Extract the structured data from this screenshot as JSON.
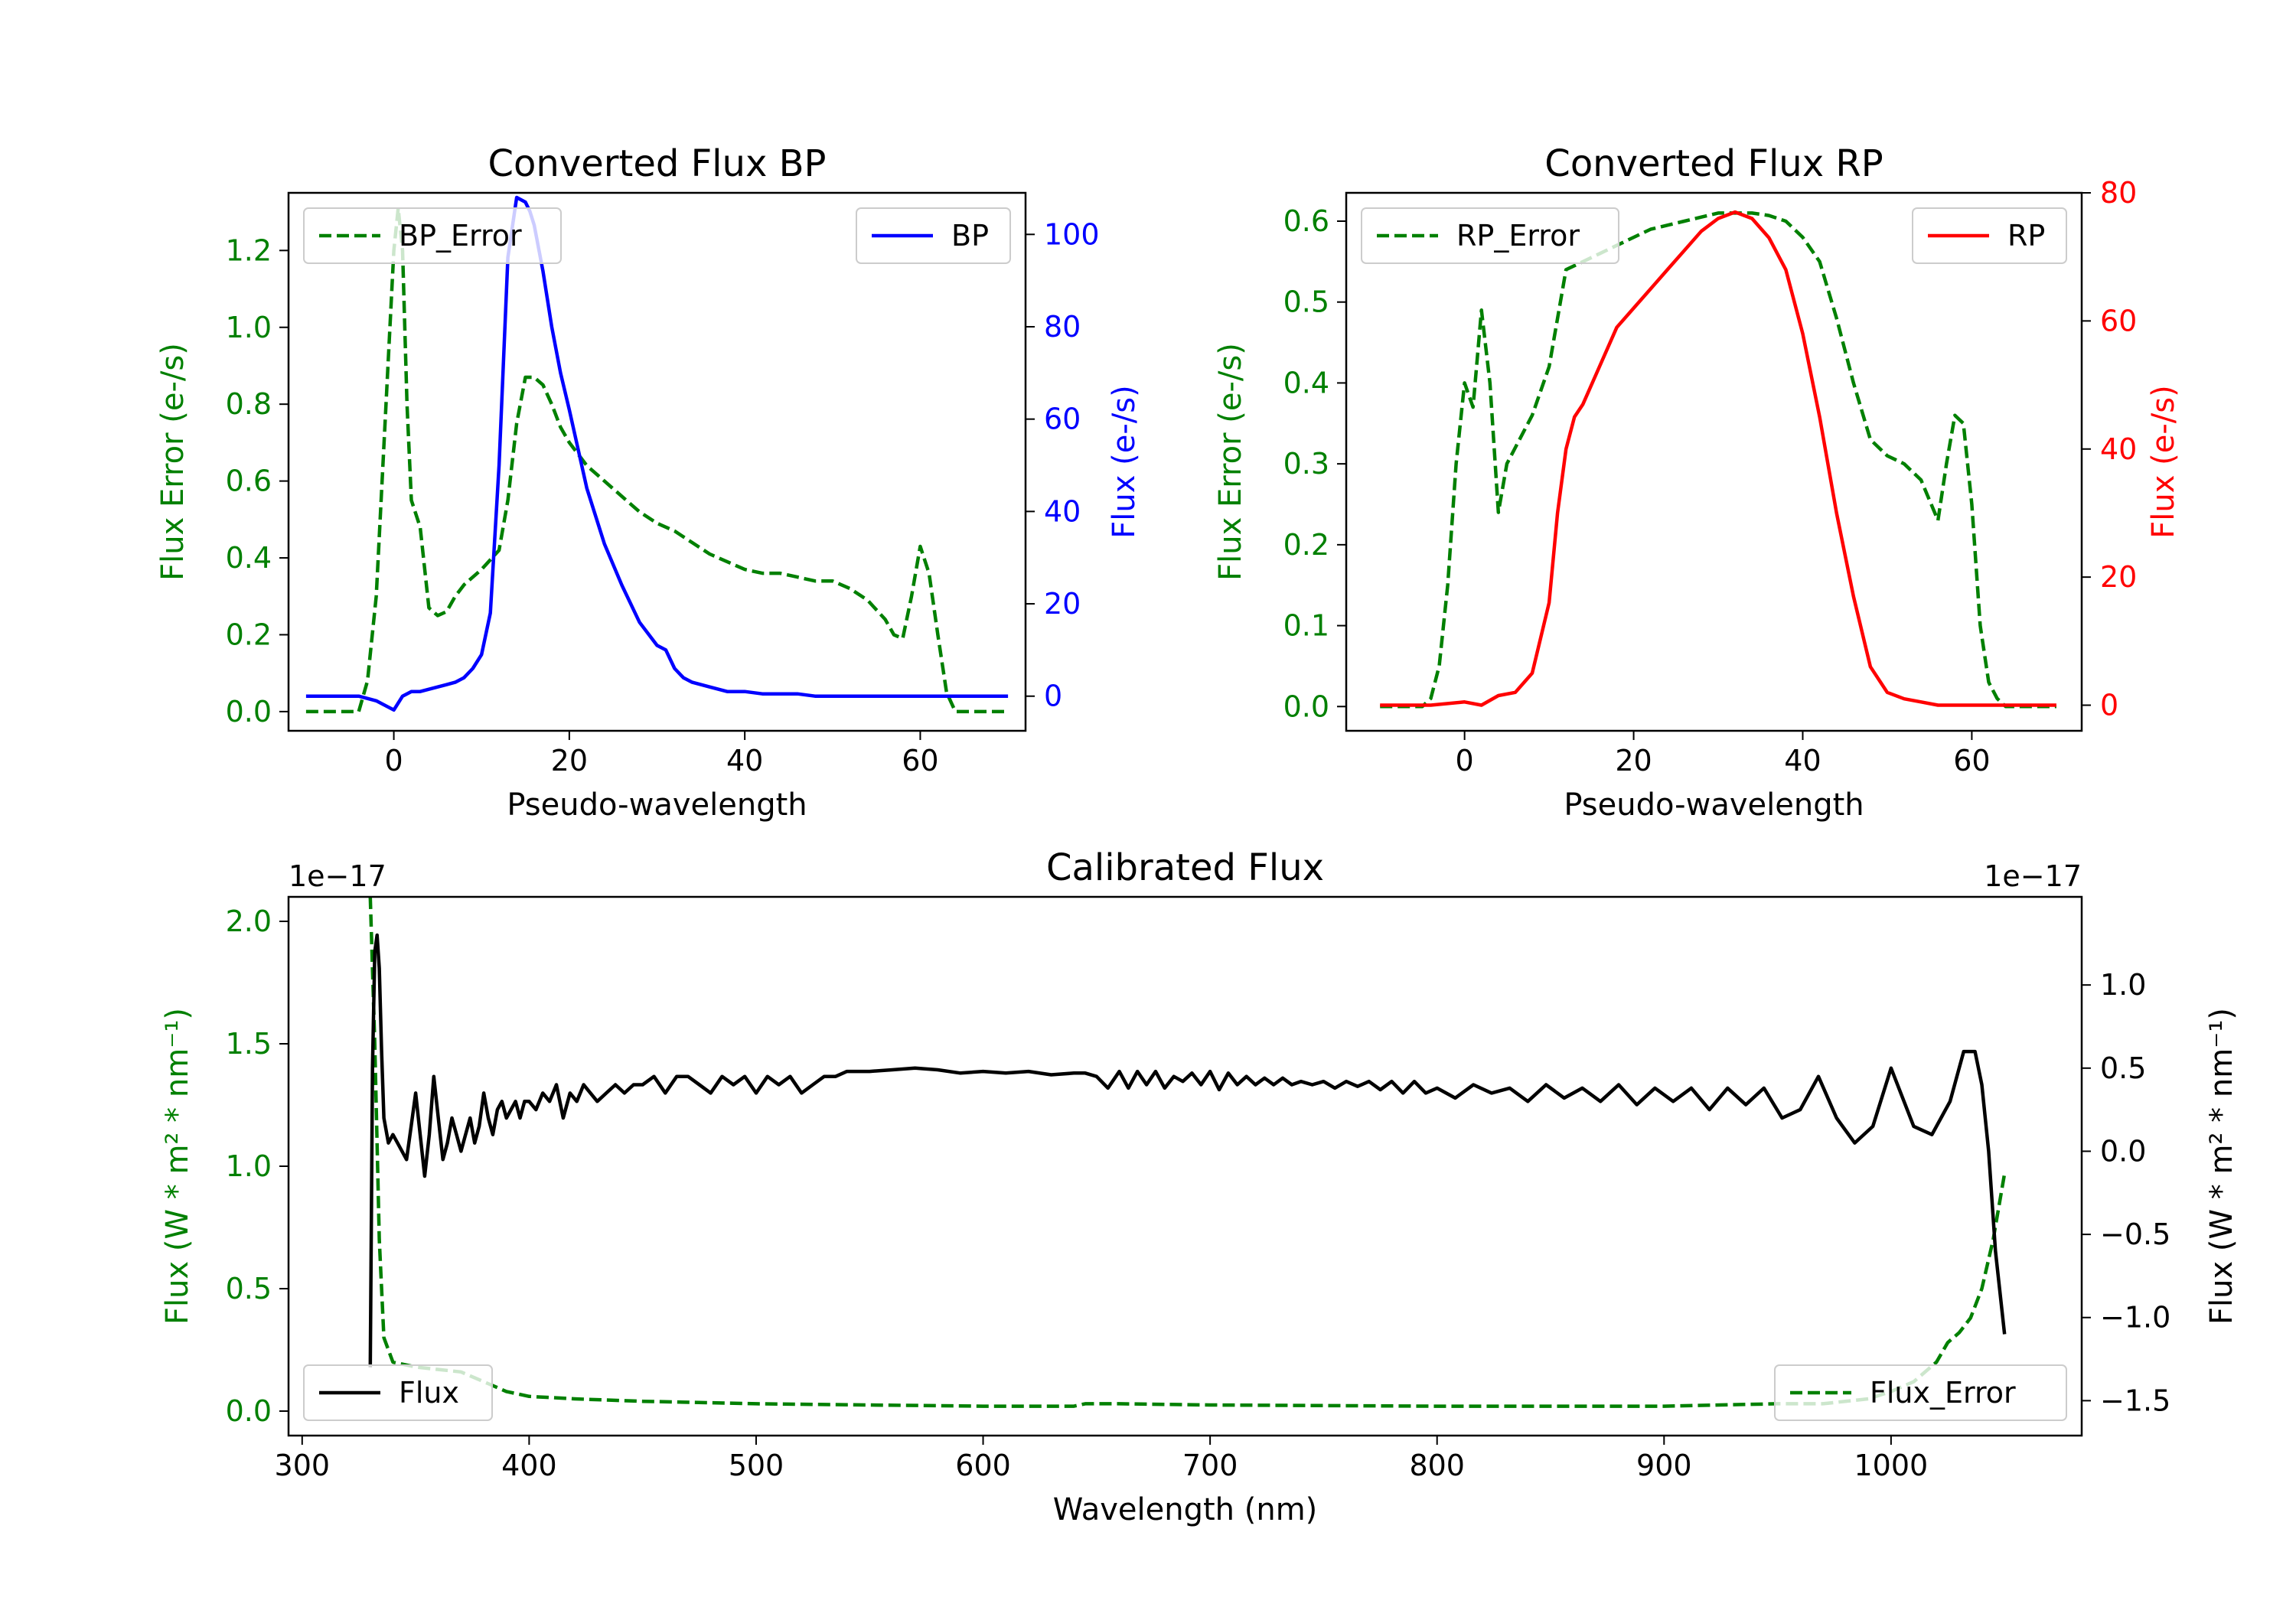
{
  "chart_data": [
    {
      "id": "bp",
      "type": "line",
      "title": "Converted Flux BP",
      "xlabel": "Pseudo-wavelength",
      "ylabel_left": "Flux Error (e-/s)",
      "ylabel_right": "Flux (e-/s)",
      "xlim": [
        -12,
        72
      ],
      "ylim_left": [
        -0.05,
        1.35
      ],
      "ylim_right": [
        -7.5,
        109
      ],
      "xticks": [
        0,
        20,
        40,
        60
      ],
      "yticks_left": [
        0.0,
        0.2,
        0.4,
        0.6,
        0.8,
        1.0,
        1.2
      ],
      "yticks_right": [
        0,
        20,
        40,
        60,
        80,
        100
      ],
      "colors": {
        "error": "#008000",
        "flux": "#0000ff",
        "left_axis": "#008000",
        "right_axis": "#0000ff"
      },
      "series": [
        {
          "name": "BP_Error",
          "axis": "left",
          "style": "dashed",
          "color": "#008000",
          "x": [
            -10,
            -4,
            -3,
            -2,
            -1,
            0,
            0.5,
            1,
            1.5,
            2,
            3,
            4,
            5,
            6,
            7,
            8,
            10,
            12,
            13,
            14,
            15,
            16,
            17,
            18,
            19,
            20,
            22,
            24,
            26,
            28,
            30,
            32,
            34,
            36,
            38,
            40,
            42,
            44,
            46,
            48,
            50,
            52,
            54,
            56,
            57,
            58,
            59,
            60,
            61,
            62,
            63,
            64,
            66,
            68,
            70
          ],
          "y": [
            0,
            0,
            0.08,
            0.3,
            0.75,
            1.2,
            1.31,
            1.2,
            0.8,
            0.55,
            0.48,
            0.27,
            0.25,
            0.26,
            0.3,
            0.33,
            0.37,
            0.42,
            0.55,
            0.75,
            0.87,
            0.87,
            0.85,
            0.8,
            0.74,
            0.7,
            0.64,
            0.6,
            0.56,
            0.52,
            0.49,
            0.47,
            0.44,
            0.41,
            0.39,
            0.37,
            0.36,
            0.36,
            0.35,
            0.34,
            0.34,
            0.32,
            0.29,
            0.24,
            0.2,
            0.19,
            0.3,
            0.43,
            0.36,
            0.2,
            0.05,
            0,
            0,
            0,
            0
          ]
        },
        {
          "name": "BP",
          "axis": "right",
          "style": "solid",
          "color": "#0000ff",
          "x": [
            -10,
            -6,
            -4,
            -2,
            0,
            1,
            2,
            3,
            4,
            5,
            6,
            7,
            8,
            9,
            10,
            11,
            12,
            13,
            14,
            15,
            15.5,
            16,
            17,
            18,
            19,
            20,
            22,
            24,
            26,
            28,
            30,
            31,
            32,
            33,
            34,
            36,
            38,
            40,
            42,
            44,
            46,
            48,
            50,
            52,
            54,
            56,
            58,
            60,
            62,
            64,
            66,
            68,
            70
          ],
          "y": [
            0,
            0,
            0,
            -1,
            -3,
            0,
            1,
            1,
            1.5,
            2,
            2.5,
            3,
            4,
            6,
            9,
            18,
            50,
            95,
            108,
            107,
            105,
            102,
            92,
            80,
            70,
            62,
            45,
            33,
            24,
            16,
            11,
            10,
            6,
            4,
            3,
            2,
            1,
            1,
            0.5,
            0.5,
            0.5,
            0,
            0,
            0,
            0,
            0,
            0,
            0,
            0,
            0,
            0,
            0,
            0
          ]
        }
      ],
      "legend": [
        "BP_Error",
        "BP"
      ],
      "legend_loc": [
        "upper left",
        "upper right"
      ]
    },
    {
      "id": "rp",
      "type": "line",
      "title": "Converted Flux RP",
      "xlabel": "Pseudo-wavelength",
      "ylabel_left": "Flux Error (e-/s)",
      "ylabel_right": "Flux (e-/s)",
      "xlim": [
        -14,
        73
      ],
      "ylim_left": [
        -0.03,
        0.635
      ],
      "ylim_right": [
        -4,
        80
      ],
      "xticks": [
        0,
        20,
        40,
        60
      ],
      "yticks_left": [
        0.0,
        0.1,
        0.2,
        0.3,
        0.4,
        0.5,
        0.6
      ],
      "yticks_right": [
        0,
        20,
        40,
        60,
        80
      ],
      "colors": {
        "error": "#008000",
        "flux": "#ff0000",
        "left_axis": "#008000",
        "right_axis": "#ff0000"
      },
      "series": [
        {
          "name": "RP_Error",
          "axis": "left",
          "style": "dashed",
          "color": "#008000",
          "x": [
            -10,
            -5,
            -4,
            -3,
            -2,
            -1,
            0,
            1,
            2,
            3,
            4,
            5,
            6,
            8,
            10,
            12,
            14,
            16,
            18,
            20,
            22,
            24,
            26,
            28,
            30,
            32,
            34,
            36,
            38,
            40,
            42,
            44,
            46,
            48,
            50,
            52,
            54,
            56,
            57,
            58,
            59,
            60,
            61,
            62,
            63,
            64,
            66,
            68,
            70
          ],
          "y": [
            0,
            0,
            0.01,
            0.05,
            0.15,
            0.3,
            0.4,
            0.37,
            0.49,
            0.4,
            0.24,
            0.3,
            0.32,
            0.36,
            0.42,
            0.54,
            0.55,
            0.56,
            0.57,
            0.58,
            0.59,
            0.595,
            0.6,
            0.605,
            0.61,
            0.61,
            0.61,
            0.607,
            0.6,
            0.58,
            0.55,
            0.48,
            0.4,
            0.33,
            0.31,
            0.3,
            0.28,
            0.23,
            0.3,
            0.36,
            0.35,
            0.25,
            0.1,
            0.03,
            0.01,
            0,
            0,
            0,
            0
          ]
        },
        {
          "name": "RP",
          "axis": "right",
          "style": "solid",
          "color": "#ff0000",
          "x": [
            -10,
            -4,
            0,
            2,
            4,
            6,
            8,
            10,
            11,
            12,
            13,
            14,
            16,
            18,
            20,
            22,
            24,
            26,
            28,
            30,
            32,
            34,
            36,
            38,
            40,
            42,
            44,
            46,
            48,
            50,
            52,
            54,
            56,
            58,
            60,
            62,
            64,
            66,
            68,
            70
          ],
          "y": [
            0,
            0,
            0.5,
            0,
            1.5,
            2,
            5,
            16,
            30,
            40,
            45,
            47,
            53,
            59,
            62,
            65,
            68,
            71,
            74,
            76,
            77,
            76,
            73,
            68,
            58,
            45,
            30,
            17,
            6,
            2,
            1,
            0.5,
            0,
            0,
            0,
            0,
            0,
            0,
            0,
            0
          ]
        }
      ],
      "legend": [
        "RP_Error",
        "RP"
      ],
      "legend_loc": [
        "upper left",
        "upper right"
      ]
    },
    {
      "id": "cal",
      "type": "line",
      "title": "Calibrated Flux",
      "xlabel": "Wavelength (nm)",
      "ylabel_left": "Flux (W * m² * nm⁻¹)",
      "ylabel_right": "Flux (W * m² * nm⁻¹)",
      "offset_left": "1e−17",
      "offset_right": "1e−17",
      "xlim": [
        294,
        1084
      ],
      "ylim_left": [
        -0.1,
        2.1
      ],
      "ylim_right": [
        -1.71,
        1.53
      ],
      "xticks": [
        300,
        400,
        500,
        600,
        700,
        800,
        900,
        1000
      ],
      "yticks_left": [
        0.0,
        0.5,
        1.0,
        1.5,
        2.0
      ],
      "yticks_right": [
        -1.5,
        -1.0,
        -0.5,
        0.0,
        0.5,
        1.0
      ],
      "colors": {
        "error": "#008000",
        "flux": "#000000",
        "left_axis": "#008000",
        "right_axis": "#000000"
      },
      "series": [
        {
          "name": "Flux_Error",
          "axis": "left",
          "style": "dashed",
          "color": "#008000",
          "x": [
            330,
            332,
            334,
            336,
            340,
            345,
            350,
            360,
            370,
            380,
            390,
            400,
            420,
            450,
            500,
            550,
            600,
            640,
            645,
            660,
            700,
            800,
            900,
            950,
            970,
            990,
            1000,
            1010,
            1020,
            1025,
            1030,
            1035,
            1040,
            1045,
            1050
          ],
          "y": [
            2.1,
            1.5,
            0.7,
            0.3,
            0.2,
            0.19,
            0.18,
            0.17,
            0.16,
            0.12,
            0.08,
            0.06,
            0.05,
            0.04,
            0.03,
            0.025,
            0.02,
            0.02,
            0.03,
            0.03,
            0.025,
            0.02,
            0.02,
            0.03,
            0.03,
            0.05,
            0.08,
            0.12,
            0.2,
            0.28,
            0.32,
            0.38,
            0.5,
            0.7,
            0.97
          ]
        },
        {
          "name": "Flux",
          "axis": "right",
          "style": "solid",
          "color": "#000000",
          "x": [
            330,
            331,
            332,
            333,
            334,
            335,
            336,
            338,
            340,
            342,
            344,
            346,
            348,
            350,
            352,
            354,
            356,
            358,
            360,
            362,
            364,
            366,
            368,
            370,
            372,
            374,
            376,
            378,
            380,
            382,
            384,
            386,
            388,
            390,
            392,
            394,
            396,
            398,
            400,
            403,
            406,
            409,
            412,
            415,
            418,
            421,
            424,
            427,
            430,
            434,
            438,
            442,
            446,
            450,
            455,
            460,
            465,
            470,
            475,
            480,
            485,
            490,
            495,
            500,
            505,
            510,
            515,
            520,
            525,
            530,
            535,
            540,
            550,
            560,
            570,
            580,
            590,
            600,
            610,
            620,
            630,
            640,
            645,
            650,
            655,
            660,
            664,
            668,
            672,
            676,
            680,
            684,
            688,
            692,
            696,
            700,
            704,
            708,
            712,
            716,
            720,
            724,
            728,
            732,
            736,
            740,
            745,
            750,
            755,
            760,
            765,
            770,
            775,
            780,
            785,
            790,
            795,
            800,
            808,
            816,
            824,
            832,
            840,
            848,
            856,
            864,
            872,
            880,
            888,
            896,
            904,
            912,
            920,
            928,
            936,
            944,
            952,
            960,
            968,
            976,
            984,
            992,
            1000,
            1010,
            1018,
            1026,
            1032,
            1037,
            1040,
            1043,
            1046,
            1050
          ],
          "y": [
            -1.3,
            0.5,
            1.2,
            1.3,
            1.1,
            0.6,
            0.2,
            0.05,
            0.1,
            0.05,
            0,
            -0.05,
            0.15,
            0.35,
            0.1,
            -0.15,
            0.1,
            0.45,
            0.2,
            -0.05,
            0.05,
            0.2,
            0.1,
            0.0,
            0.1,
            0.2,
            0.05,
            0.15,
            0.35,
            0.2,
            0.1,
            0.25,
            0.3,
            0.2,
            0.25,
            0.3,
            0.2,
            0.3,
            0.3,
            0.25,
            0.35,
            0.3,
            0.4,
            0.2,
            0.35,
            0.3,
            0.4,
            0.35,
            0.3,
            0.35,
            0.4,
            0.35,
            0.4,
            0.4,
            0.45,
            0.35,
            0.45,
            0.45,
            0.4,
            0.35,
            0.45,
            0.4,
            0.45,
            0.35,
            0.45,
            0.4,
            0.45,
            0.35,
            0.4,
            0.45,
            0.45,
            0.48,
            0.48,
            0.49,
            0.5,
            0.49,
            0.47,
            0.48,
            0.47,
            0.48,
            0.46,
            0.47,
            0.47,
            0.45,
            0.38,
            0.48,
            0.38,
            0.48,
            0.4,
            0.48,
            0.38,
            0.45,
            0.42,
            0.47,
            0.4,
            0.48,
            0.37,
            0.47,
            0.4,
            0.45,
            0.4,
            0.44,
            0.4,
            0.44,
            0.4,
            0.42,
            0.4,
            0.42,
            0.38,
            0.42,
            0.39,
            0.42,
            0.37,
            0.42,
            0.35,
            0.42,
            0.35,
            0.38,
            0.32,
            0.4,
            0.35,
            0.38,
            0.3,
            0.4,
            0.32,
            0.38,
            0.3,
            0.4,
            0.28,
            0.38,
            0.3,
            0.38,
            0.25,
            0.38,
            0.28,
            0.38,
            0.2,
            0.25,
            0.45,
            0.2,
            0.05,
            0.15,
            0.5,
            0.15,
            0.1,
            0.3,
            0.6,
            0.6,
            0.4,
            0.0,
            -0.6,
            -1.1
          ],
          "note": "oscillating flux curve"
        }
      ],
      "legend": [
        "Flux",
        "Flux_Error"
      ],
      "legend_loc": [
        "lower left",
        "lower right"
      ]
    }
  ]
}
